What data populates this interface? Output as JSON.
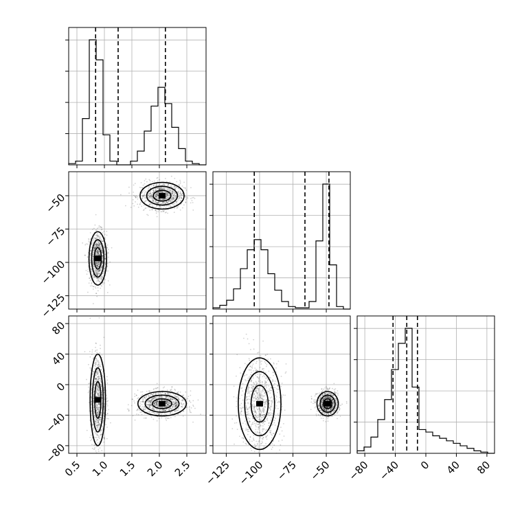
{
  "chart_data": {
    "type": "corner",
    "variables": [
      {
        "name": "",
        "lim": [
          0.35,
          2.85
        ],
        "ticks": [
          "0.5",
          "1.0",
          "1.5",
          "2.0",
          "2.5"
        ],
        "tick_values": [
          0.5,
          1.0,
          1.5,
          2.0,
          2.5
        ]
      },
      {
        "name": "",
        "lim": [
          -135,
          -32
        ],
        "ticks": [
          "-125",
          "-100",
          "-75",
          "-50"
        ],
        "tick_values": [
          -125,
          -100,
          -75,
          -50
        ]
      },
      {
        "name": "",
        "lim": [
          -90,
          90
        ],
        "ticks": [
          "-80",
          "-40",
          "0",
          "40",
          "80"
        ],
        "tick_values": [
          -80,
          -40,
          0,
          40,
          80
        ]
      }
    ],
    "grid": true,
    "histograms": [
      {
        "variable": 0,
        "bin_edges": [
          0.35,
          0.475,
          0.6,
          0.725,
          0.85,
          0.975,
          1.1,
          1.225,
          1.35,
          1.475,
          1.6,
          1.725,
          1.85,
          1.975,
          2.1,
          2.225,
          2.35,
          2.475,
          2.6,
          2.725,
          2.85
        ],
        "counts": [
          0.01,
          0.03,
          0.37,
          1.0,
          0.84,
          0.24,
          0.03,
          0.0,
          0.0,
          0.03,
          0.11,
          0.27,
          0.47,
          0.62,
          0.49,
          0.3,
          0.13,
          0.03,
          0.01,
          0.0
        ],
        "quantiles": [
          0.84,
          1.25,
          2.11
        ]
      },
      {
        "variable": 1,
        "bin_edges": [
          -135,
          -129.85,
          -124.7,
          -119.55,
          -114.4,
          -109.25,
          -104.1,
          -98.95,
          -93.8,
          -88.65,
          -83.5,
          -78.35,
          -73.2,
          -68.05,
          -62.9,
          -57.75,
          -52.6,
          -47.45,
          -42.3,
          -37.15,
          -32
        ],
        "counts": [
          0.01,
          0.03,
          0.07,
          0.16,
          0.32,
          0.47,
          0.55,
          0.47,
          0.28,
          0.15,
          0.06,
          0.02,
          0.01,
          0.01,
          0.06,
          0.54,
          0.99,
          0.35,
          0.02,
          0.0
        ],
        "quantiles": [
          -104,
          -66,
          -48
        ]
      },
      {
        "variable": 2,
        "bin_edges": [
          -90,
          -81,
          -72,
          -63,
          -54,
          -45,
          -36,
          -27,
          -18,
          -9,
          0,
          9,
          18,
          27,
          36,
          45,
          54,
          63,
          72,
          81,
          90
        ],
        "counts": [
          0.02,
          0.05,
          0.13,
          0.27,
          0.43,
          0.67,
          0.88,
          1.0,
          0.53,
          0.19,
          0.17,
          0.14,
          0.12,
          0.1,
          0.08,
          0.06,
          0.04,
          0.02,
          0.01,
          0.0
        ],
        "quantiles": [
          -43,
          -25,
          -11
        ]
      }
    ],
    "scatter_2d": [
      {
        "x_variable": 0,
        "y_variable": 1,
        "clusters": [
          {
            "center": [
              0.88,
              -97
            ],
            "spread": [
              0.08,
              10
            ]
          },
          {
            "center": [
              2.05,
              -50
            ],
            "spread": [
              0.2,
              5
            ]
          }
        ]
      },
      {
        "x_variable": 0,
        "y_variable": 2,
        "clusters": [
          {
            "center": [
              0.88,
              -20
            ],
            "spread": [
              0.07,
              30
            ]
          },
          {
            "center": [
              2.05,
              -25
            ],
            "spread": [
              0.22,
              8
            ]
          }
        ]
      },
      {
        "x_variable": 1,
        "y_variable": 2,
        "clusters": [
          {
            "center": [
              -100,
              -25
            ],
            "spread": [
              8,
              30
            ]
          },
          {
            "center": [
              -49,
              -25
            ],
            "spread": [
              4,
              8
            ]
          }
        ]
      }
    ]
  }
}
